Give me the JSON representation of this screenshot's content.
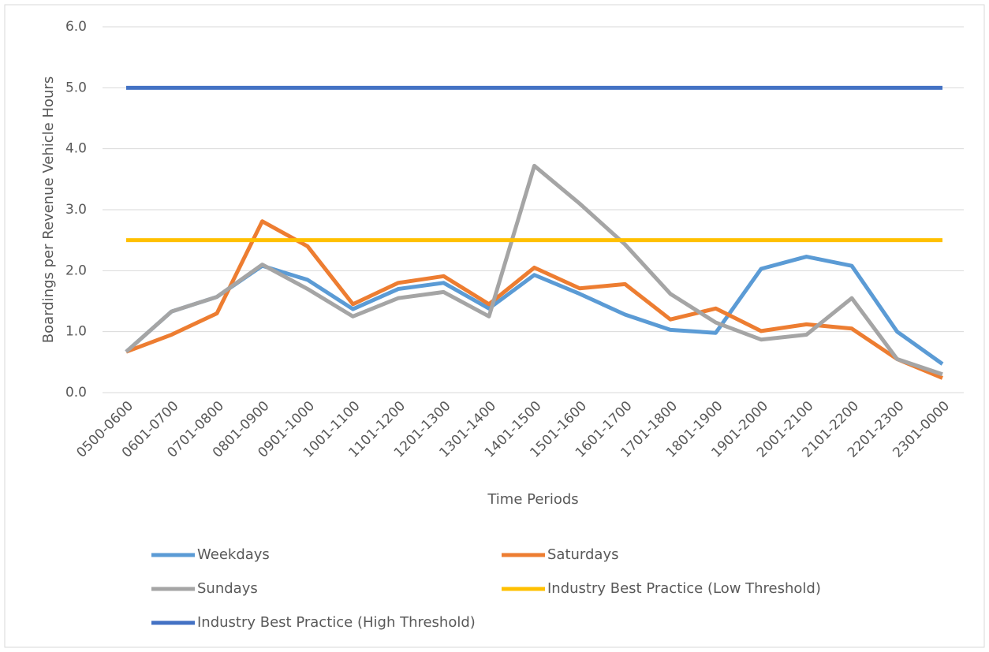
{
  "chart_data": {
    "type": "line",
    "y_label": "Boardings per Revenue Vehicle Hours",
    "x_label": "Time Periods",
    "categories": [
      "0500-0600",
      "0601-0700",
      "0701-0800",
      "0801-0900",
      "0901-1000",
      "1001-1100",
      "1101-1200",
      "1201-1300",
      "1301-1400",
      "1401-1500",
      "1501-1600",
      "1601-1700",
      "1701-1800",
      "1801-1900",
      "1901-2000",
      "2001-2100",
      "2101-2200",
      "2201-2300",
      "2301-0000"
    ],
    "series": [
      {
        "name": "Weekdays",
        "color": "#5b9bd5",
        "values": [
          0.67,
          1.33,
          1.57,
          2.08,
          1.85,
          1.37,
          1.7,
          1.8,
          1.38,
          1.93,
          1.62,
          1.28,
          1.03,
          0.98,
          2.03,
          2.23,
          2.08,
          1.0,
          0.47
        ]
      },
      {
        "name": "Saturdays",
        "color": "#ed7d31",
        "values": [
          0.67,
          0.95,
          1.3,
          2.81,
          2.4,
          1.45,
          1.8,
          1.91,
          1.45,
          2.05,
          1.71,
          1.78,
          1.2,
          1.38,
          1.01,
          1.12,
          1.05,
          0.55,
          0.24
        ]
      },
      {
        "name": "Sundays",
        "color": "#a5a5a5",
        "values": [
          0.67,
          1.33,
          1.57,
          2.1,
          1.7,
          1.25,
          1.55,
          1.65,
          1.25,
          3.72,
          3.1,
          2.43,
          1.62,
          1.15,
          0.87,
          0.95,
          1.55,
          0.55,
          0.3
        ]
      },
      {
        "name": "Industry Best Practice (Low Threshold)",
        "color": "#ffc000",
        "values": [
          2.5,
          2.5,
          2.5,
          2.5,
          2.5,
          2.5,
          2.5,
          2.5,
          2.5,
          2.5,
          2.5,
          2.5,
          2.5,
          2.5,
          2.5,
          2.5,
          2.5,
          2.5,
          2.5
        ]
      },
      {
        "name": "Industry Best Practice (High Threshold)",
        "color": "#4472c4",
        "values": [
          5,
          5,
          5,
          5,
          5,
          5,
          5,
          5,
          5,
          5,
          5,
          5,
          5,
          5,
          5,
          5,
          5,
          5,
          5
        ]
      }
    ],
    "ylim": [
      0,
      6
    ],
    "yticks": [
      {
        "value": 0,
        "label": "0.0"
      },
      {
        "value": 1,
        "label": "1.0"
      },
      {
        "value": 2,
        "label": "2.0"
      },
      {
        "value": 3,
        "label": "3.0"
      },
      {
        "value": 4,
        "label": "4.0"
      },
      {
        "value": 5,
        "label": "5.0"
      },
      {
        "value": 6,
        "label": "6.0"
      }
    ],
    "grid": true
  }
}
